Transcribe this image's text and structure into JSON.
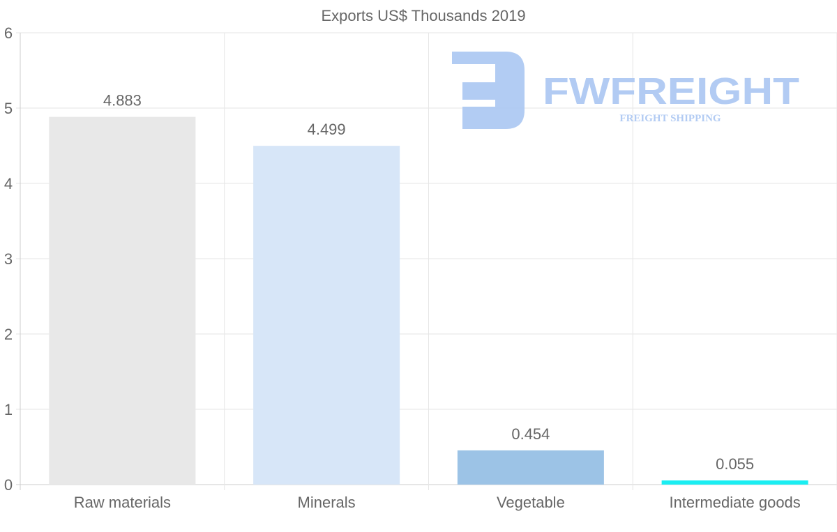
{
  "chart_data": {
    "type": "bar",
    "title": "Exports US$ Thousands 2019",
    "categories": [
      "Raw materials",
      "Minerals",
      "Vegetable",
      "Intermediate goods"
    ],
    "values": [
      4.883,
      4.499,
      0.454,
      0.055
    ],
    "value_labels": [
      "4.883",
      "4.499",
      "0.454",
      "0.055"
    ],
    "colors": [
      "#e8e8e8",
      "#d7e6f8",
      "#9cc3e6",
      "#1aeef2"
    ],
    "ylim": [
      0,
      6
    ],
    "yticks": [
      "0",
      "1",
      "2",
      "3",
      "4",
      "5",
      "6"
    ],
    "xlabel": "",
    "ylabel": "",
    "grid": true
  },
  "watermark": {
    "brand": "FWFREIGHT",
    "tagline": "FREIGHT SHIPPING",
    "color": "#aac6f2"
  }
}
